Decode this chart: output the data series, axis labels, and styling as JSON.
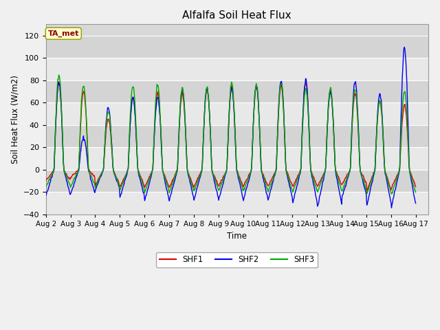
{
  "title": "Alfalfa Soil Heat Flux",
  "ylabel": "Soil Heat Flux (W/m2)",
  "xlabel": "Time",
  "ylim": [
    -40,
    130
  ],
  "yticks": [
    -40,
    -20,
    0,
    20,
    40,
    60,
    80,
    100,
    120
  ],
  "fig_bg_color": "#f0f0f0",
  "plot_bg_color": "#d8d8d8",
  "grid_color": "#e8e8e8",
  "shf1_color": "#dd0000",
  "shf2_color": "#0000ee",
  "shf3_color": "#00aa00",
  "legend_label1": "SHF1",
  "legend_label2": "SHF2",
  "legend_label3": "SHF3",
  "annotation_text": "TA_met",
  "annotation_color": "#8b0000",
  "annotation_bg": "#ffffcc",
  "n_days": 15,
  "hours_per_day": 48,
  "start_day": 2
}
